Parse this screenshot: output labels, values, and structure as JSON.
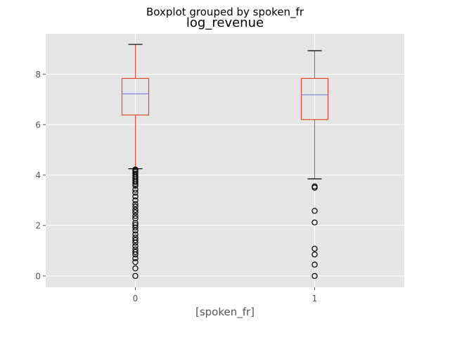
{
  "chart_data": {
    "type": "boxplot",
    "suptitle": "Boxplot grouped by spoken_fr",
    "title": "log_revenue",
    "xlabel": "[spoken_fr]",
    "ylabel": "",
    "ylim": [
      -0.45,
      9.6
    ],
    "yticks": [
      0,
      2,
      4,
      6,
      8
    ],
    "grid": true,
    "style": "ggplot",
    "categories": [
      "0",
      "1"
    ],
    "boxes": [
      {
        "category": "0",
        "whisker_low": 4.25,
        "q1": 6.38,
        "median": 7.22,
        "q3": 7.83,
        "whisker_high": 9.18,
        "outliers": [
          4.22,
          4.18,
          4.12,
          4.05,
          3.98,
          3.92,
          3.85,
          3.78,
          3.72,
          3.65,
          3.58,
          3.42,
          3.3,
          3.15,
          3.0,
          2.85,
          2.75,
          2.62,
          2.52,
          2.38,
          2.28,
          2.1,
          2.02,
          1.92,
          1.8,
          1.65,
          1.52,
          1.42,
          1.32,
          1.18,
          1.05,
          0.95,
          0.85,
          0.7,
          0.55,
          0.3,
          0.0
        ]
      },
      {
        "category": "1",
        "whisker_low": 3.85,
        "q1": 6.2,
        "median": 7.18,
        "q3": 7.83,
        "whisker_high": 8.93,
        "outliers": [
          3.55,
          3.5,
          2.58,
          2.12,
          1.08,
          0.85,
          0.45,
          0.0
        ]
      }
    ],
    "colors": {
      "background": "#e5e5e5",
      "grid": "#ffffff",
      "box": "#e24a33",
      "median": "#8080e0",
      "caps": "#000000",
      "outliers": "#000000",
      "ticks": "#555555"
    }
  }
}
